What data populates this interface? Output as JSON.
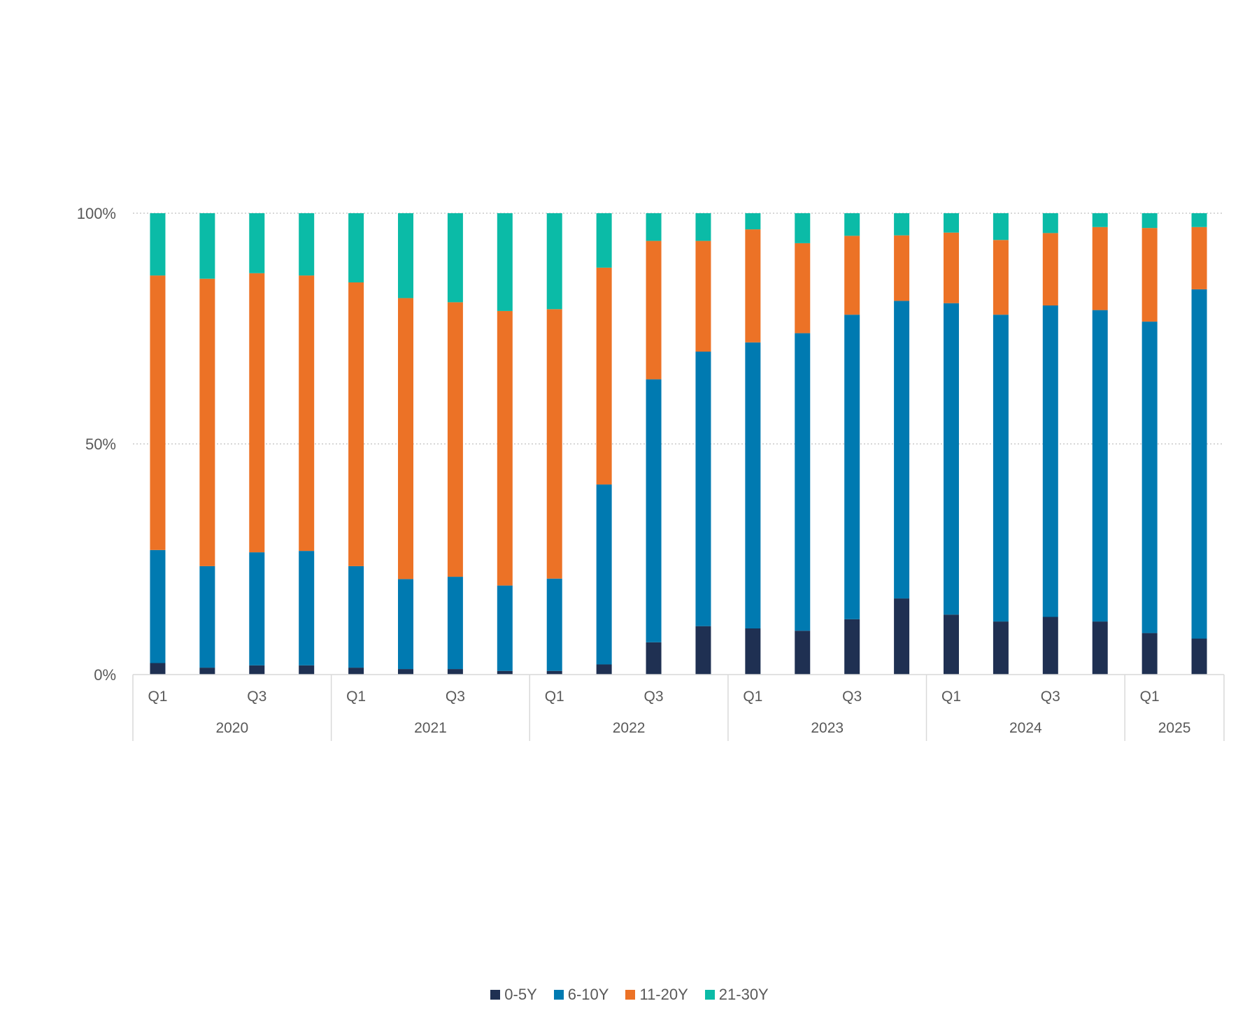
{
  "chart_data": {
    "type": "bar",
    "stacked": true,
    "normalized": true,
    "title": "",
    "xlabel": "",
    "ylabel": "",
    "ylim": [
      0,
      100
    ],
    "y_ticks": [
      "0%",
      "50%",
      "100%"
    ],
    "grid": true,
    "legend_position": "bottom",
    "categories": [
      "2020 Q1",
      "2020 Q2",
      "2020 Q3",
      "2020 Q4",
      "2021 Q1",
      "2021 Q2",
      "2021 Q3",
      "2021 Q4",
      "2022 Q1",
      "2022 Q2",
      "2022 Q3",
      "2022 Q4",
      "2023 Q1",
      "2023 Q2",
      "2023 Q3",
      "2023 Q4",
      "2024 Q1",
      "2024 Q2",
      "2024 Q3",
      "2024 Q4",
      "2025 Q1",
      "2025 Q2"
    ],
    "quarter_labels": [
      "Q1",
      "",
      "Q3",
      "",
      "Q1",
      "",
      "Q3",
      "",
      "Q1",
      "",
      "Q3",
      "",
      "Q1",
      "",
      "Q3",
      "",
      "Q1",
      "",
      "Q3",
      "",
      "Q1",
      ""
    ],
    "year_groups": [
      {
        "label": "2020",
        "count": 4
      },
      {
        "label": "2021",
        "count": 4
      },
      {
        "label": "2022",
        "count": 4
      },
      {
        "label": "2023",
        "count": 4
      },
      {
        "label": "2024",
        "count": 4
      },
      {
        "label": "2025",
        "count": 2
      }
    ],
    "series": [
      {
        "name": "0-5Y",
        "color": "#1f3052",
        "values": [
          2.5,
          1.5,
          2,
          2,
          1.5,
          1.2,
          1.2,
          0.8,
          0.8,
          2.2,
          7,
          10.5,
          10,
          9.5,
          12,
          16.5,
          13,
          11.5,
          12.5,
          11.5,
          9,
          7.8
        ]
      },
      {
        "name": "6-10Y",
        "color": "#007ab1",
        "values": [
          24.5,
          22,
          24.5,
          24.8,
          22,
          19.5,
          20,
          18.5,
          20,
          39,
          57,
          59.5,
          62,
          64.5,
          66,
          64.5,
          67.5,
          66.5,
          67.5,
          67.5,
          67.5,
          75.7
        ]
      },
      {
        "name": "11-20Y",
        "color": "#ec7226",
        "values": [
          59.5,
          62.3,
          60.5,
          59.7,
          61.5,
          60.9,
          59.5,
          59.5,
          58.4,
          47,
          30,
          24,
          24.5,
          19.5,
          17.1,
          14.2,
          15.3,
          16.2,
          15.7,
          18,
          20.3,
          13.5
        ]
      },
      {
        "name": "21-30Y",
        "color": "#0bbba7",
        "values": [
          13.5,
          14.2,
          13,
          13.5,
          15,
          18.4,
          19.3,
          21.2,
          20.8,
          11.8,
          6,
          6,
          3.5,
          6.5,
          4.9,
          4.8,
          4.2,
          5.8,
          4.3,
          3,
          3.2,
          3
        ]
      }
    ]
  }
}
